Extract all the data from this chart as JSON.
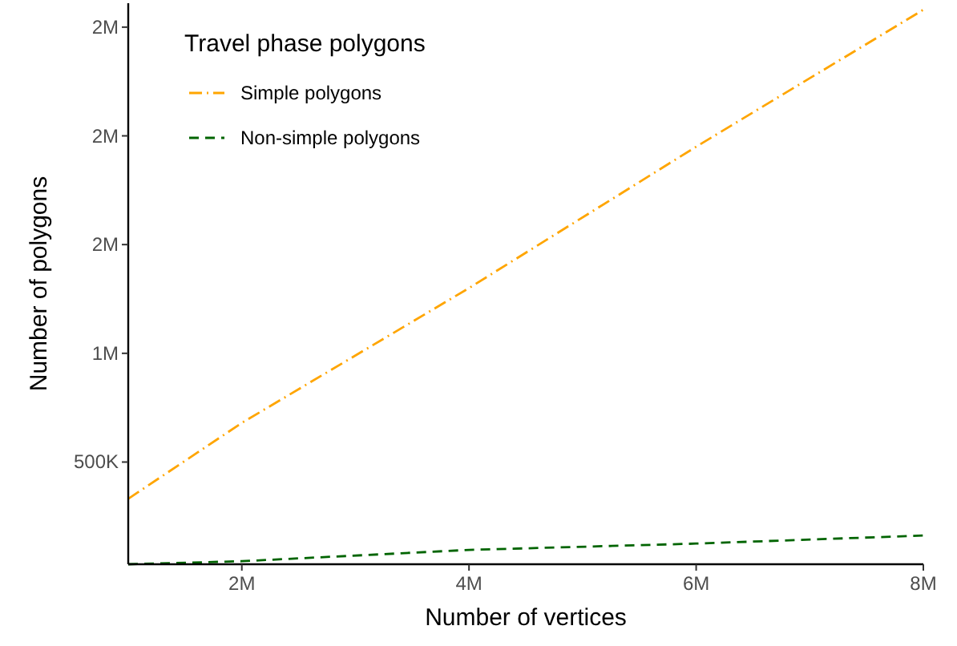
{
  "chart_data": {
    "type": "line",
    "xlabel": "Number of vertices",
    "ylabel": "Number of polygons",
    "legend_title": "Travel phase polygons",
    "legend": "top left",
    "grid": false,
    "xlim": [
      1000000,
      8000000
    ],
    "xticks": [
      {
        "value": 2000000,
        "label": "2M"
      },
      {
        "value": 4000000,
        "label": "4M"
      },
      {
        "value": 6000000,
        "label": "6M"
      },
      {
        "value": 8000000,
        "label": "8M"
      }
    ],
    "ylim": [
      30000,
      2610000
    ],
    "yticks": [
      {
        "value": 500000,
        "label": "500K"
      },
      {
        "value": 1000000,
        "label": "1M"
      },
      {
        "value": 1500000,
        "label": "2M"
      },
      {
        "value": 2000000,
        "label": "2M"
      },
      {
        "value": 2500000,
        "label": "2M"
      }
    ],
    "x": [
      1000000,
      2000000,
      4000000,
      6000000,
      8000000
    ],
    "series": [
      {
        "name": "Simple polygons",
        "color": "#ffa500",
        "line_style": "dashdot",
        "values": [
          331000,
          680000,
          1300000,
          1950000,
          2580000
        ]
      },
      {
        "name": "Non-simple polygons",
        "color": "#006400",
        "line_style": "dashed",
        "values": [
          30000,
          44000,
          96000,
          125000,
          162000
        ]
      }
    ]
  }
}
